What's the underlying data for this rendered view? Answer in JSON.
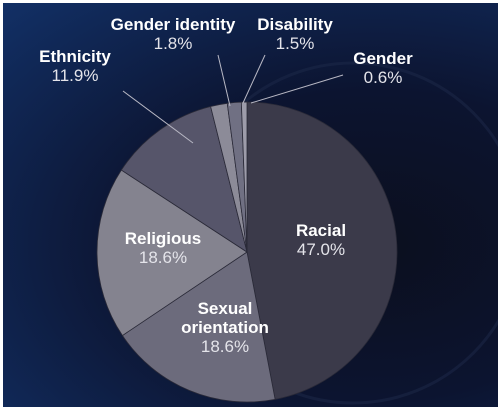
{
  "chart_data": {
    "type": "pie",
    "categories": [
      "Racial",
      "Sexual orientation",
      "Religious",
      "Ethnicity",
      "Gender identity",
      "Disability",
      "Gender"
    ],
    "values": [
      47.0,
      18.6,
      18.6,
      11.9,
      1.8,
      1.5,
      0.6
    ],
    "value_labels": [
      "47.0%",
      "18.6%",
      "18.6%",
      "11.9%",
      "1.8%",
      "1.5%",
      "0.6%"
    ],
    "colors": [
      "#3b3a4a",
      "#6c6b7c",
      "#84838f",
      "#56556a",
      "#8c8b98",
      "#707083",
      "#9d9caa"
    ]
  }
}
